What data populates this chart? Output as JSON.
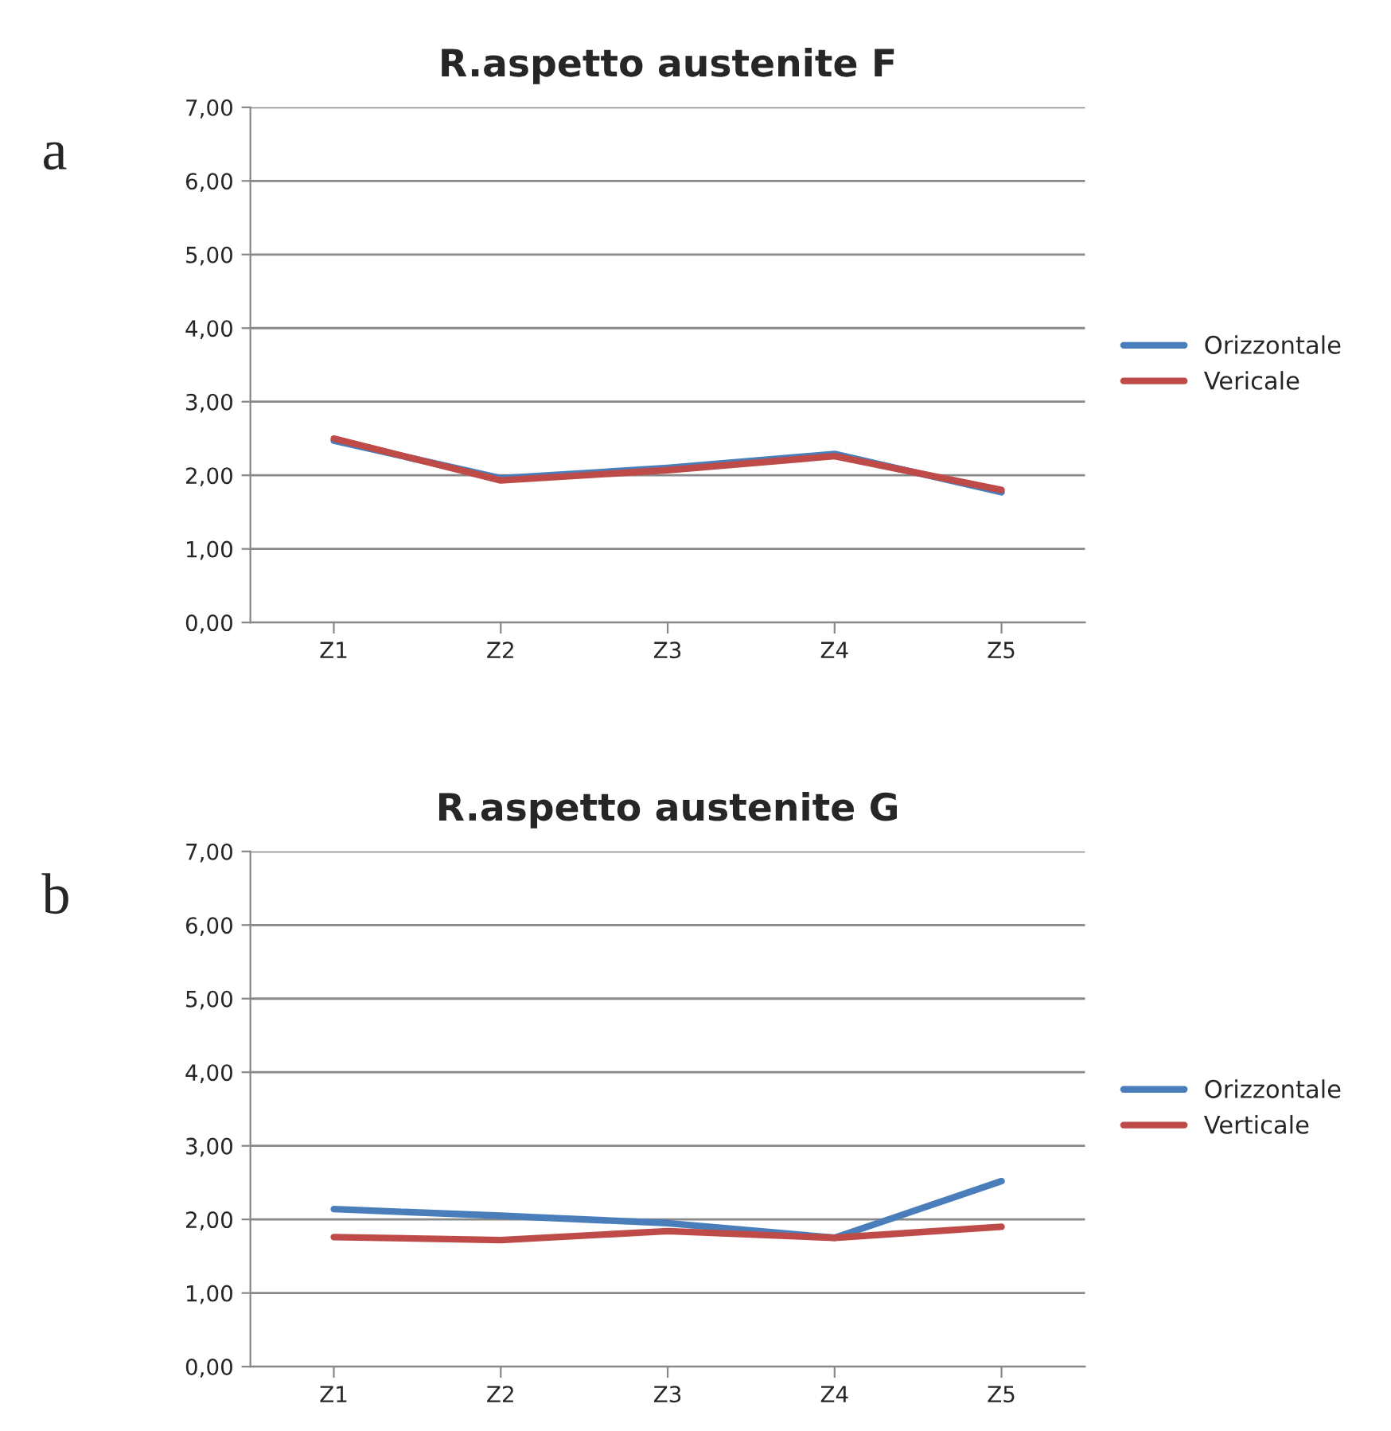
{
  "chart_data": [
    {
      "type": "line",
      "title": "R.aspetto austenite F",
      "annotations": [
        "a"
      ],
      "categories": [
        "Z1",
        "Z2",
        "Z3",
        "Z4",
        "Z5"
      ],
      "series": [
        {
          "name": "Orizzontale",
          "color": "#4a7ebb",
          "values": [
            2.47,
            1.96,
            2.1,
            2.29,
            1.77
          ]
        },
        {
          "name": "Vericale",
          "color": "#be4b48",
          "values": [
            2.5,
            1.93,
            2.07,
            2.26,
            1.8
          ]
        }
      ],
      "ylim": [
        0,
        7
      ],
      "yticks": [
        {
          "value": 0,
          "label": "0,00"
        },
        {
          "value": 1,
          "label": "1,00"
        },
        {
          "value": 2,
          "label": "2,00"
        },
        {
          "value": 3,
          "label": "3,00"
        },
        {
          "value": 4,
          "label": "4,00"
        },
        {
          "value": 5,
          "label": "5,00"
        },
        {
          "value": 6,
          "label": "6,00"
        },
        {
          "value": 7,
          "label": "7,00"
        }
      ],
      "grid": "y",
      "legend": "right",
      "marker": "none",
      "line_style": "solid"
    },
    {
      "type": "line",
      "title": "R.aspetto austenite G",
      "annotations": [
        "b"
      ],
      "categories": [
        "Z1",
        "Z2",
        "Z3",
        "Z4",
        "Z5"
      ],
      "series": [
        {
          "name": "Orizzontale",
          "color": "#4a7ebb",
          "values": [
            2.14,
            2.05,
            1.95,
            1.75,
            2.52
          ]
        },
        {
          "name": "Verticale",
          "color": "#be4b48",
          "values": [
            1.76,
            1.72,
            1.84,
            1.75,
            1.9
          ]
        }
      ],
      "ylim": [
        0,
        7
      ],
      "yticks": [
        {
          "value": 0,
          "label": "0,00"
        },
        {
          "value": 1,
          "label": "1,00"
        },
        {
          "value": 2,
          "label": "2,00"
        },
        {
          "value": 3,
          "label": "3,00"
        },
        {
          "value": 4,
          "label": "4,00"
        },
        {
          "value": 5,
          "label": "5,00"
        },
        {
          "value": 6,
          "label": "6,00"
        },
        {
          "value": 7,
          "label": "7,00"
        }
      ],
      "grid": "y",
      "legend": "right",
      "marker": "none",
      "line_style": "solid"
    }
  ]
}
